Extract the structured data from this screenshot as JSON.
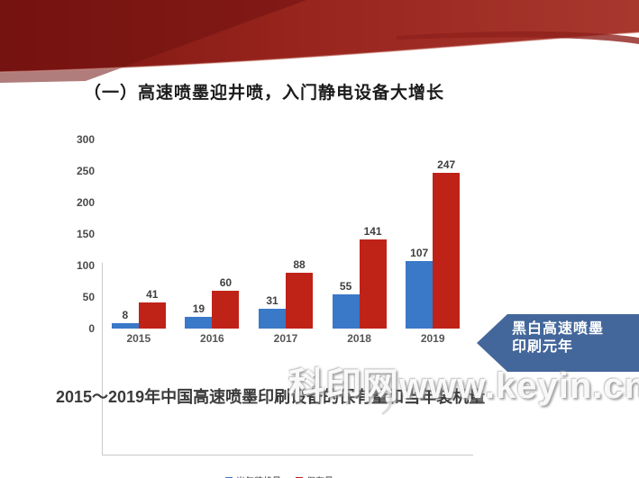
{
  "title": {
    "text": "（一）高速喷墨迎井喷，入门静电设备大增长"
  },
  "ribbon": {
    "color_dark": "#7c1411",
    "color_mid": "#97241d",
    "color_light": "#a8382f"
  },
  "chart_data": {
    "type": "bar",
    "title": "",
    "categories": [
      "2015",
      "2016",
      "2017",
      "2018",
      "2019"
    ],
    "series": [
      {
        "name": "当年装机量",
        "color": "#3a78c8",
        "values": [
          8,
          19,
          31,
          55,
          107
        ]
      },
      {
        "name": "保有量",
        "color": "#bf2318",
        "values": [
          41,
          60,
          88,
          141,
          247
        ]
      }
    ],
    "xlabel": "",
    "ylabel": "",
    "ylim": [
      0,
      300
    ],
    "yticks": [
      0,
      50,
      100,
      150,
      200,
      250,
      300
    ],
    "grid": false,
    "legend_position": "bottom",
    "value_labels": true
  },
  "callout": {
    "line1": "黑白高速喷墨",
    "line2": "印刷元年",
    "bg": "#44679b"
  },
  "caption": {
    "text": "2015～2019年中国高速喷墨印刷设备的保有量和当年装机量"
  },
  "watermark": {
    "text": "科印网www.keyin.cn"
  }
}
